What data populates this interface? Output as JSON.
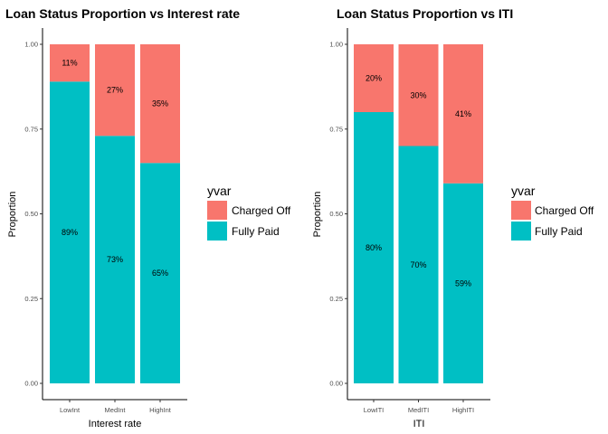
{
  "colors": {
    "charged_off": "#F8766D",
    "fully_paid": "#00BFC4"
  },
  "chart_data": [
    {
      "type": "bar",
      "stacked": "proportion",
      "title": "Loan Status Proportion vs Interest rate",
      "xlabel": "Interest rate",
      "ylabel": "Proportion",
      "ylim": [
        0,
        1
      ],
      "yticks": [
        "0.00",
        "0.25",
        "0.50",
        "0.75",
        "1.00"
      ],
      "categories": [
        "LowInt",
        "MedInt",
        "HighInt"
      ],
      "series": [
        {
          "name": "Charged Off",
          "values": [
            0.11,
            0.27,
            0.35
          ],
          "labels": [
            "11%",
            "27%",
            "35%"
          ]
        },
        {
          "name": "Fully Paid",
          "values": [
            0.89,
            0.73,
            0.65
          ],
          "labels": [
            "89%",
            "73%",
            "65%"
          ]
        }
      ],
      "legend": {
        "title": "yvar",
        "position": "right"
      },
      "grid": false
    },
    {
      "type": "bar",
      "stacked": "proportion",
      "title": "Loan Status Proportion vs ITI",
      "xlabel": "ITI",
      "ylabel": "Proportion",
      "ylim": [
        0,
        1
      ],
      "yticks": [
        "0.00",
        "0.25",
        "0.50",
        "0.75",
        "1.00"
      ],
      "categories": [
        "LowITI",
        "MedITI",
        "HighITI"
      ],
      "series": [
        {
          "name": "Charged Off",
          "values": [
            0.2,
            0.3,
            0.41
          ],
          "labels": [
            "20%",
            "30%",
            "41%"
          ]
        },
        {
          "name": "Fully Paid",
          "values": [
            0.8,
            0.7,
            0.59
          ],
          "labels": [
            "80%",
            "70%",
            "59%"
          ]
        }
      ],
      "legend": {
        "title": "yvar",
        "position": "right"
      },
      "grid": false
    }
  ]
}
